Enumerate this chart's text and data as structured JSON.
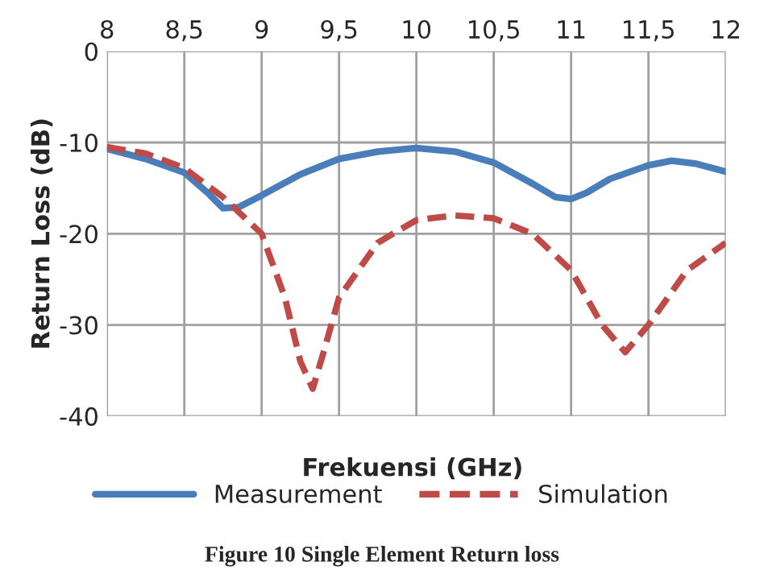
{
  "chart_data": {
    "type": "line",
    "xlabel": "Frekuensi (GHz)",
    "ylabel": "Return Loss (dB)",
    "annotations": [
      "Figure 10 Single Element Return loss"
    ],
    "xlim": [
      8,
      12
    ],
    "ylim": [
      -40,
      0
    ],
    "xticks": [
      8,
      {
        "value": 8.5,
        "label": "8,5"
      },
      9,
      {
        "value": 9.5,
        "label": "9,5"
      },
      10,
      {
        "value": 10.5,
        "label": "10,5"
      },
      11,
      {
        "value": 11.5,
        "label": "11,5"
      },
      12
    ],
    "yticks": [
      -40,
      -30,
      -20,
      -10,
      0
    ],
    "grid": true,
    "legend": "bottom",
    "series": [
      {
        "name": "Measurement",
        "color": "#4a7ebb",
        "line_style": "solid",
        "x": [
          8,
          8.25,
          8.5,
          8.65,
          8.75,
          8.85,
          9,
          9.25,
          9.5,
          9.75,
          10,
          10.25,
          10.5,
          10.75,
          10.9,
          11,
          11.1,
          11.25,
          11.5,
          11.65,
          11.8,
          12
        ],
        "values": [
          -10.7,
          -11.8,
          -13.3,
          -15.5,
          -17.2,
          -17.1,
          -15.8,
          -13.5,
          -11.8,
          -11,
          -10.6,
          -11,
          -12.2,
          -14.5,
          -16,
          -16.2,
          -15.5,
          -14,
          -12.5,
          -12,
          -12.3,
          -13.2
        ]
      },
      {
        "name": "Simulation",
        "color": "#be4b48",
        "line_style": "dashed",
        "x": [
          8,
          8.25,
          8.5,
          8.75,
          9,
          9.15,
          9.25,
          9.33,
          9.4,
          9.5,
          9.75,
          10,
          10.25,
          10.5,
          10.75,
          11,
          11.2,
          11.35,
          11.5,
          11.75,
          12
        ],
        "values": [
          -10.5,
          -11.2,
          -12.8,
          -16,
          -20,
          -27,
          -34,
          -37,
          -33,
          -27,
          -21,
          -18.5,
          -18,
          -18.3,
          -20,
          -24,
          -30,
          -33,
          -30,
          -24,
          -21
        ]
      }
    ]
  }
}
